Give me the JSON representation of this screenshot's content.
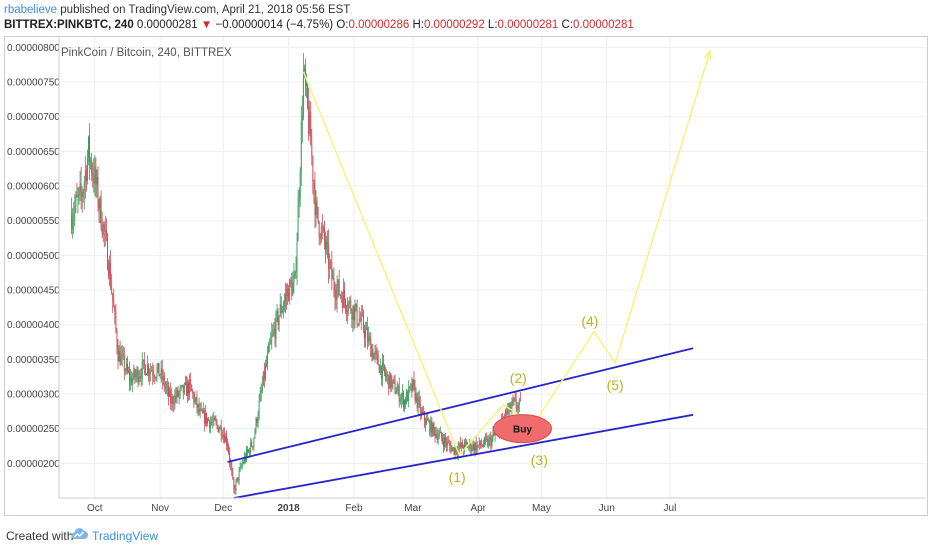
{
  "header": {
    "author": "rbabelieve",
    "published_text": "published on TradingView.com, April 21, 2018 05:56 EST",
    "symbol": "BITTREX:PINKBTC, 240",
    "last_price": "0.00000281",
    "arrow": "▼",
    "change": "−0.00000014 (−4.75%)",
    "o_label": "O:",
    "o_value": "0.00000286",
    "h_label": "H:",
    "h_value": "0.00000292",
    "l_label": "L:",
    "l_value": "0.00000281",
    "c_label": "C:",
    "c_value": "0.00000281"
  },
  "footer": {
    "created_with": "Created with",
    "brand": "TradingView",
    "logo_icon": "tradingview-cloud-icon"
  },
  "colors": {
    "up_candle": "#3c9a5b",
    "down_candle": "#c84b57",
    "trend_line": "#2626c9",
    "wave_line": "#f7f27a",
    "wave_label": "#b9b51d",
    "buy_ellipse": "#f06b6b",
    "grid": "#eceff2"
  },
  "chart_data": {
    "type": "candlestick",
    "title": "PinkCoin / Bitcoin, 240, BITTREX",
    "y_ticks": [
      "0.00000800",
      "0.00000750",
      "0.00000700",
      "0.00000650",
      "0.00000600",
      "0.00000550",
      "0.00000500",
      "0.00000450",
      "0.00000400",
      "0.00000350",
      "0.00000300",
      "0.00000250",
      "0.00000200"
    ],
    "x_ticks": [
      "Oct",
      "Nov",
      "Dec",
      "2018",
      "Feb",
      "Mar",
      "Apr",
      "May",
      "Jun",
      "Jul"
    ],
    "ylim": [
      1.5e-06,
      8.15e-06
    ],
    "price_path": [
      [
        "2017-09-20",
        5.6e-06
      ],
      [
        "2017-09-25",
        5.9e-06
      ],
      [
        "2017-09-28",
        6.5e-06
      ],
      [
        "2017-10-01",
        6.1e-06
      ],
      [
        "2017-10-05",
        5.4e-06
      ],
      [
        "2017-10-08",
        4.8e-06
      ],
      [
        "2017-10-12",
        3.6e-06
      ],
      [
        "2017-10-18",
        3.2e-06
      ],
      [
        "2017-10-25",
        3.4e-06
      ],
      [
        "2017-11-01",
        3.3e-06
      ],
      [
        "2017-11-06",
        2.9e-06
      ],
      [
        "2017-11-10",
        3e-06
      ],
      [
        "2017-11-15",
        3.1e-06
      ],
      [
        "2017-11-20",
        2.7e-06
      ],
      [
        "2017-11-25",
        2.6e-06
      ],
      [
        "2017-11-30",
        2.5e-06
      ],
      [
        "2017-12-03",
        2.3e-06
      ],
      [
        "2017-12-06",
        1.6e-06
      ],
      [
        "2017-12-10",
        2e-06
      ],
      [
        "2017-12-15",
        2.3e-06
      ],
      [
        "2017-12-20",
        3.2e-06
      ],
      [
        "2017-12-24",
        3.8e-06
      ],
      [
        "2017-12-28",
        4.2e-06
      ],
      [
        "2018-01-01",
        4.5e-06
      ],
      [
        "2018-01-04",
        4.6e-06
      ],
      [
        "2018-01-06",
        6e-06
      ],
      [
        "2018-01-08",
        7.6e-06
      ],
      [
        "2018-01-11",
        6.8e-06
      ],
      [
        "2018-01-14",
        5.6e-06
      ],
      [
        "2018-01-18",
        5.2e-06
      ],
      [
        "2018-01-22",
        4.6e-06
      ],
      [
        "2018-01-27",
        4.4e-06
      ],
      [
        "2018-02-01",
        4.2e-06
      ],
      [
        "2018-02-05",
        4e-06
      ],
      [
        "2018-02-10",
        3.6e-06
      ],
      [
        "2018-02-15",
        3.3e-06
      ],
      [
        "2018-02-20",
        3.1e-06
      ],
      [
        "2018-02-25",
        2.9e-06
      ],
      [
        "2018-03-01",
        3.1e-06
      ],
      [
        "2018-03-05",
        2.7e-06
      ],
      [
        "2018-03-10",
        2.5e-06
      ],
      [
        "2018-03-15",
        2.35e-06
      ],
      [
        "2018-03-20",
        2.2e-06
      ],
      [
        "2018-03-26",
        2.25e-06
      ],
      [
        "2018-04-01",
        2.25e-06
      ],
      [
        "2018-04-06",
        2.3e-06
      ],
      [
        "2018-04-10",
        2.45e-06
      ],
      [
        "2018-04-14",
        2.7e-06
      ],
      [
        "2018-04-18",
        2.85e-06
      ],
      [
        "2018-04-21",
        2.81e-06
      ]
    ],
    "annotations": {
      "trend_lines": [
        {
          "name": "upper-channel-line",
          "from": [
            "2017-12-03",
            2.02e-06
          ],
          "to": [
            "2018-07-12",
            3.66e-06
          ]
        },
        {
          "name": "lower-channel-line",
          "from": [
            "2017-12-06",
            1.5e-06
          ],
          "to": [
            "2018-07-12",
            2.7e-06
          ]
        }
      ],
      "wave_path": [
        [
          "2018-01-08",
          7.65e-06
        ],
        [
          "2018-03-23",
          2.12e-06
        ],
        [
          "2018-04-13",
          2.85e-06
        ],
        [
          "2018-04-27",
          2.55e-06
        ],
        [
          "2018-05-26",
          3.9e-06
        ],
        [
          "2018-06-05",
          3.45e-06
        ],
        [
          "2018-07-20",
          7.95e-06
        ]
      ],
      "wave_labels": [
        {
          "text": "(1)",
          "date": "2018-03-22",
          "price": 1.8e-06
        },
        {
          "text": "(2)",
          "date": "2018-04-20",
          "price": 3.23e-06
        },
        {
          "text": "(3)",
          "date": "2018-04-30",
          "price": 2.05e-06
        },
        {
          "text": "(4)",
          "date": "2018-05-24",
          "price": 4.05e-06
        },
        {
          "text": "(5)",
          "date": "2018-06-05",
          "price": 3.13e-06
        }
      ],
      "buy_zone": {
        "text": "Buy",
        "date": "2018-04-22",
        "price": 2.5e-06
      }
    }
  }
}
